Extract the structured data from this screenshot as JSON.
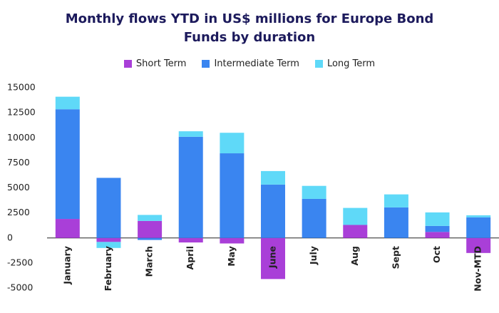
{
  "chart_data": {
    "type": "bar",
    "stacked": true,
    "grid": false,
    "title": "Monthly flows YTD in US$ millions for Europe Bond Funds by duration",
    "categories": [
      "January",
      "February",
      "March",
      "April",
      "May",
      "June",
      "July",
      "Aug",
      "Sept",
      "Oct",
      "Nov-MTD"
    ],
    "series": [
      {
        "name": "Short Term",
        "color": "#a93fd8",
        "values": [
          1900,
          -400,
          1700,
          -450,
          -550,
          -4100,
          0,
          1300,
          0,
          600,
          -1500
        ]
      },
      {
        "name": "Intermediate Term",
        "color": "#3a85f0",
        "values": [
          10950,
          6000,
          -200,
          10100,
          8450,
          5330,
          3900,
          0,
          3050,
          600,
          2060
        ]
      },
      {
        "name": "Long Term",
        "color": "#5fd9f8",
        "values": [
          1250,
          -600,
          600,
          550,
          2050,
          1350,
          1300,
          1700,
          1300,
          1350,
          200
        ]
      }
    ],
    "ylim": [
      -5000,
      15000
    ],
    "yticks": [
      -5000,
      -2500,
      0,
      2500,
      5000,
      7500,
      10000,
      12500,
      15000
    ]
  }
}
